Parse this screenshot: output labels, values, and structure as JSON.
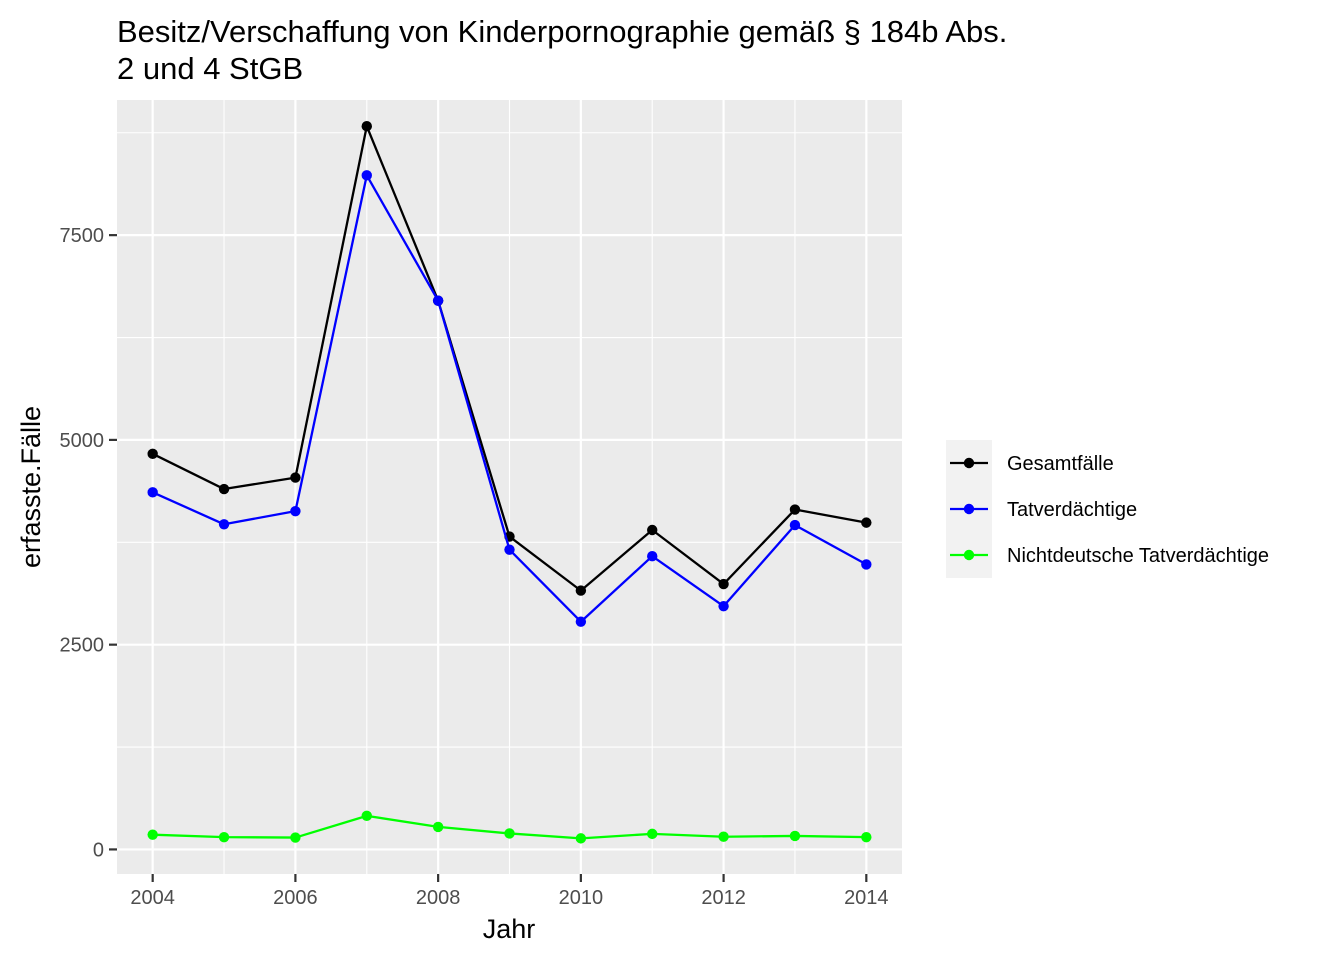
{
  "chart_data": {
    "type": "line",
    "title_line1": "Besitz/Verschaffung von Kinderpornographie gemäß § 184b Abs.",
    "title_line2": "2 und 4 StGB",
    "xlabel": "Jahr",
    "ylabel": "erfasste.Fälle",
    "x": [
      2004,
      2005,
      2006,
      2007,
      2008,
      2009,
      2010,
      2011,
      2012,
      2013,
      2014
    ],
    "xlim": [
      2003.5,
      2014.5
    ],
    "ylim": [
      -300,
      9150
    ],
    "x_ticks": [
      2004,
      2006,
      2008,
      2010,
      2012,
      2014
    ],
    "y_ticks": [
      0,
      2500,
      5000,
      7500
    ],
    "grid": true,
    "legend_position": "right",
    "panel_background": "#ebebeb",
    "series": [
      {
        "name": "Gesamtfälle",
        "color": "#000000",
        "values": [
          4830,
          4400,
          4540,
          8830,
          6700,
          3820,
          3160,
          3900,
          3240,
          4150,
          3990
        ]
      },
      {
        "name": "Tatverdächtige",
        "color": "#0000ff",
        "values": [
          4360,
          3970,
          4130,
          8230,
          6700,
          3660,
          2780,
          3580,
          2970,
          3960,
          3480
        ]
      },
      {
        "name": "Nichtdeutsche Tatverdächtige",
        "color": "#00ff00",
        "values": [
          180,
          150,
          145,
          410,
          275,
          195,
          135,
          190,
          155,
          165,
          150
        ]
      }
    ]
  }
}
